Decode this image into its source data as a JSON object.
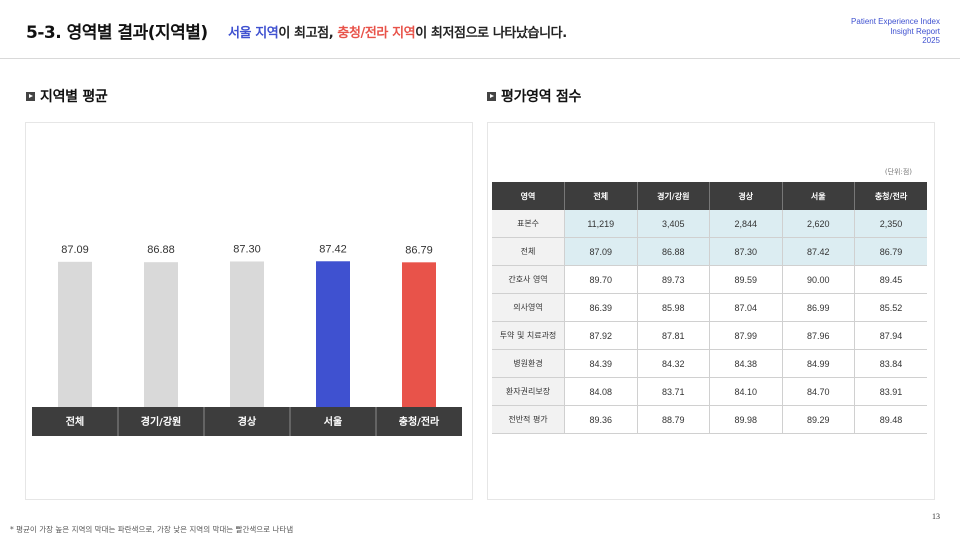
{
  "header": {
    "title": "5-3. 영역별 결과(지역별)",
    "subtitle": {
      "seoul": "서울 지역",
      "mid1": "이 최고점, ",
      "chungjeolla": "충청/전라 지역",
      "end": "이 최저점으로 나타났습니다."
    },
    "brand": [
      "Patient Experience Index",
      "Insight Report",
      "2025"
    ]
  },
  "sections": {
    "chart_heading": "지역별 평균",
    "table_heading": "평가영역 점수"
  },
  "colors": {
    "bar_default": "#d9d9d9",
    "bar_highest": "#3f51d0",
    "bar_lowest": "#e8534a",
    "category_bg": "#3d3d3d"
  },
  "chart_data": {
    "type": "bar",
    "categories": [
      "전체",
      "경기/강원",
      "경상",
      "서울",
      "충청/전라"
    ],
    "values": [
      87.09,
      86.88,
      87.3,
      87.42,
      86.79
    ],
    "value_labels": [
      "87.09",
      "86.88",
      "87.30",
      "87.42",
      "86.79"
    ],
    "highlight": {
      "highest": "서울",
      "lowest": "충청/전라"
    },
    "ylim": [
      0,
      100
    ],
    "grid": false,
    "legend": "none"
  },
  "table": {
    "unit": "(단위:점)",
    "headers": [
      "영역",
      "전체",
      "경기/강원",
      "경상",
      "서울",
      "충청/전라"
    ],
    "rows": [
      {
        "label": "표본수",
        "values": [
          "11,219",
          "3,405",
          "2,844",
          "2,620",
          "2,350"
        ],
        "shade": true
      },
      {
        "label": "전체",
        "values": [
          "87.09",
          "86.88",
          "87.30",
          "87.42",
          "86.79"
        ],
        "shade": true
      },
      {
        "label": "간호사 영역",
        "values": [
          "89.70",
          "89.73",
          "89.59",
          "90.00",
          "89.45"
        ],
        "shade": false
      },
      {
        "label": "의사영역",
        "values": [
          "86.39",
          "85.98",
          "87.04",
          "86.99",
          "85.52"
        ],
        "shade": false
      },
      {
        "label": "투약 및 치료과정",
        "values": [
          "87.92",
          "87.81",
          "87.99",
          "87.96",
          "87.94"
        ],
        "shade": false
      },
      {
        "label": "병원환경",
        "values": [
          "84.39",
          "84.32",
          "84.38",
          "84.99",
          "83.84"
        ],
        "shade": false
      },
      {
        "label": "환자권리보장",
        "values": [
          "84.08",
          "83.71",
          "84.10",
          "84.70",
          "83.91"
        ],
        "shade": false
      },
      {
        "label": "전반적 평가",
        "values": [
          "89.36",
          "88.79",
          "89.98",
          "89.29",
          "89.48"
        ],
        "shade": false
      }
    ]
  },
  "footnote": "* 평균이 가장 높은 지역의 막대는 파란색으로, 가장 낮은 지역의 막대는 빨간색으로 나타냄",
  "page_number": "13"
}
